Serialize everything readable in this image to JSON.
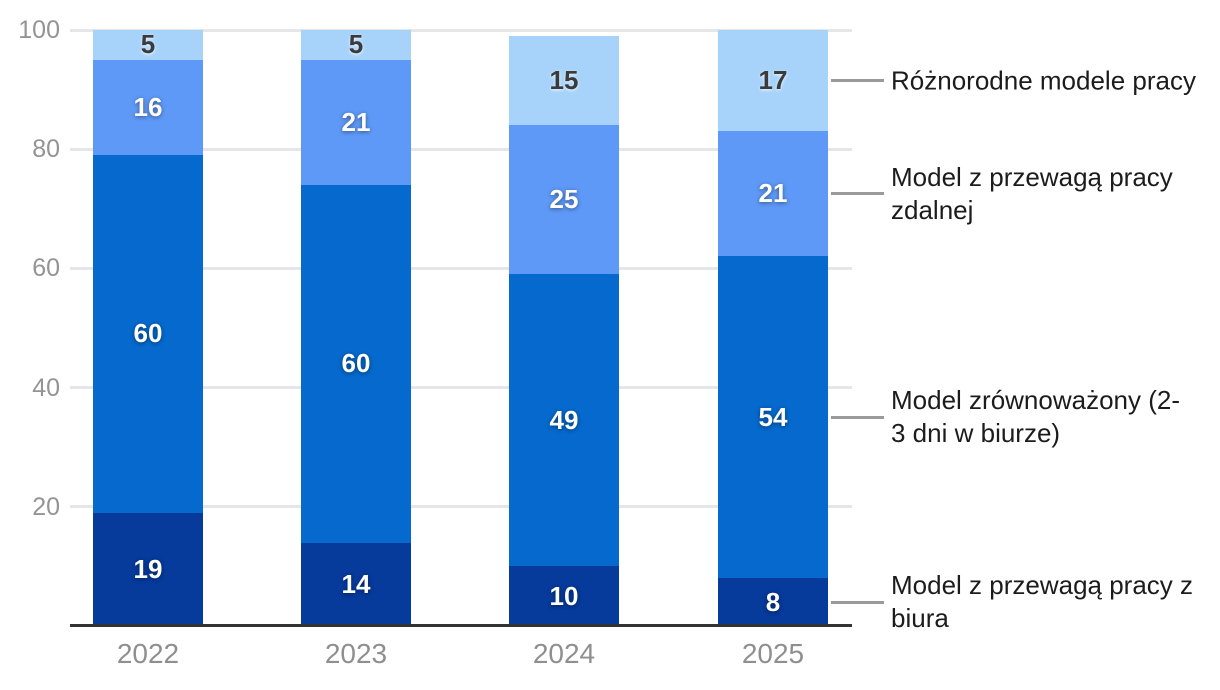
{
  "chart_data": {
    "type": "bar",
    "subtype": "stacked-vertical",
    "title": "",
    "xlabel": "",
    "ylabel": "",
    "categories": [
      "2022",
      "2023",
      "2024",
      "2025"
    ],
    "series": [
      {
        "name": "Model z przewagą pracy z biura",
        "color": "#063a9b",
        "label_color": "#ffffff",
        "values": [
          19,
          14,
          10,
          8
        ]
      },
      {
        "name": "Model zrównoważony (2-3 dni w biurze)",
        "color": "#0569cd",
        "label_color": "#ffffff",
        "values": [
          60,
          60,
          49,
          54
        ]
      },
      {
        "name": "Model z przewagą pracy zdalnej",
        "color": "#5e99f7",
        "label_color": "#ffffff",
        "values": [
          16,
          21,
          25,
          21
        ]
      },
      {
        "name": "Różnorodne modele pracy",
        "color": "#a7d3fa",
        "label_color": "#3b3b3b",
        "values": [
          5,
          5,
          15,
          17
        ]
      }
    ],
    "ylim": [
      0,
      100
    ],
    "yticks": [
      20,
      40,
      60,
      80,
      100
    ],
    "grid": true,
    "legend_position": "right",
    "legend": [
      {
        "series": "Różnorodne modele pracy",
        "lines": [
          "Różnorodne modele pracy"
        ]
      },
      {
        "series": "Model z przewagą pracy zdalnej",
        "lines": [
          "Model z przewagą pracy",
          "zdalnej"
        ]
      },
      {
        "series": "Model zrównoważony (2-3 dni w biurze)",
        "lines": [
          "Model zrównoważony (2-",
          "3 dni w biurze)"
        ]
      },
      {
        "series": "Model z przewagą pracy z biura",
        "lines": [
          "Model z przewagą pracy z",
          "biura"
        ]
      }
    ],
    "colors": {
      "axis": "#333333",
      "grid": "#e6e6e8",
      "tick_label": "#949494",
      "legend_text": "#1c1c1c",
      "connector": "#9a9a9a",
      "background": "#ffffff"
    }
  }
}
